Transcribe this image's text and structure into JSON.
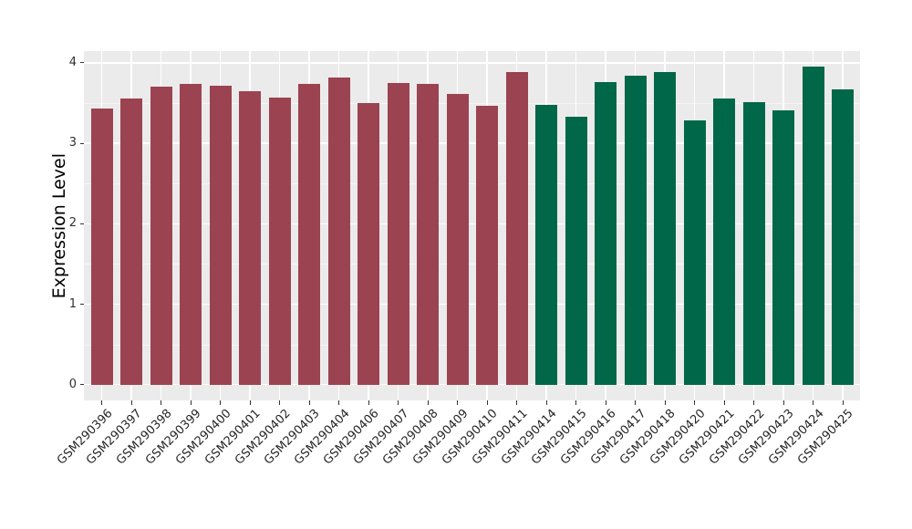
{
  "chart_data": {
    "type": "bar",
    "title": "",
    "xlabel": "",
    "ylabel": "Expression Level",
    "categories": [
      "GSM290396",
      "GSM290397",
      "GSM290398",
      "GSM290399",
      "GSM290400",
      "GSM290401",
      "GSM290402",
      "GSM290403",
      "GSM290404",
      "GSM290406",
      "GSM290407",
      "GSM290408",
      "GSM290409",
      "GSM290410",
      "GSM290411",
      "GSM290414",
      "GSM290415",
      "GSM290416",
      "GSM290417",
      "GSM290418",
      "GSM290420",
      "GSM290421",
      "GSM290422",
      "GSM290423",
      "GSM290424",
      "GSM290425"
    ],
    "values": [
      3.43,
      3.56,
      3.7,
      3.74,
      3.71,
      3.65,
      3.57,
      3.74,
      3.82,
      3.5,
      3.75,
      3.74,
      3.61,
      3.47,
      3.88,
      3.48,
      3.33,
      3.76,
      3.84,
      3.89,
      3.28,
      3.56,
      3.51,
      3.41,
      3.95,
      3.67
    ],
    "groups": [
      {
        "name": "group-1",
        "color": "#9B4351",
        "from": 0,
        "to": 14
      },
      {
        "name": "group-2",
        "color": "#006748",
        "from": 15,
        "to": 25
      }
    ],
    "yticks": [
      0,
      1,
      2,
      3,
      4
    ],
    "ytick_labels": [
      "0",
      "1",
      "2",
      "3",
      "4"
    ],
    "minor_ticks": [
      0.5,
      1.5,
      2.5,
      3.5
    ],
    "ylim": [
      0,
      4.15
    ],
    "grid": true,
    "legend": "none",
    "panel_background": "#EBEBEB",
    "gridline_major_color": "#FFFFFF",
    "gridline_minor_color": "rgba(255,255,255,0.55)",
    "tick_color": "#333333"
  }
}
